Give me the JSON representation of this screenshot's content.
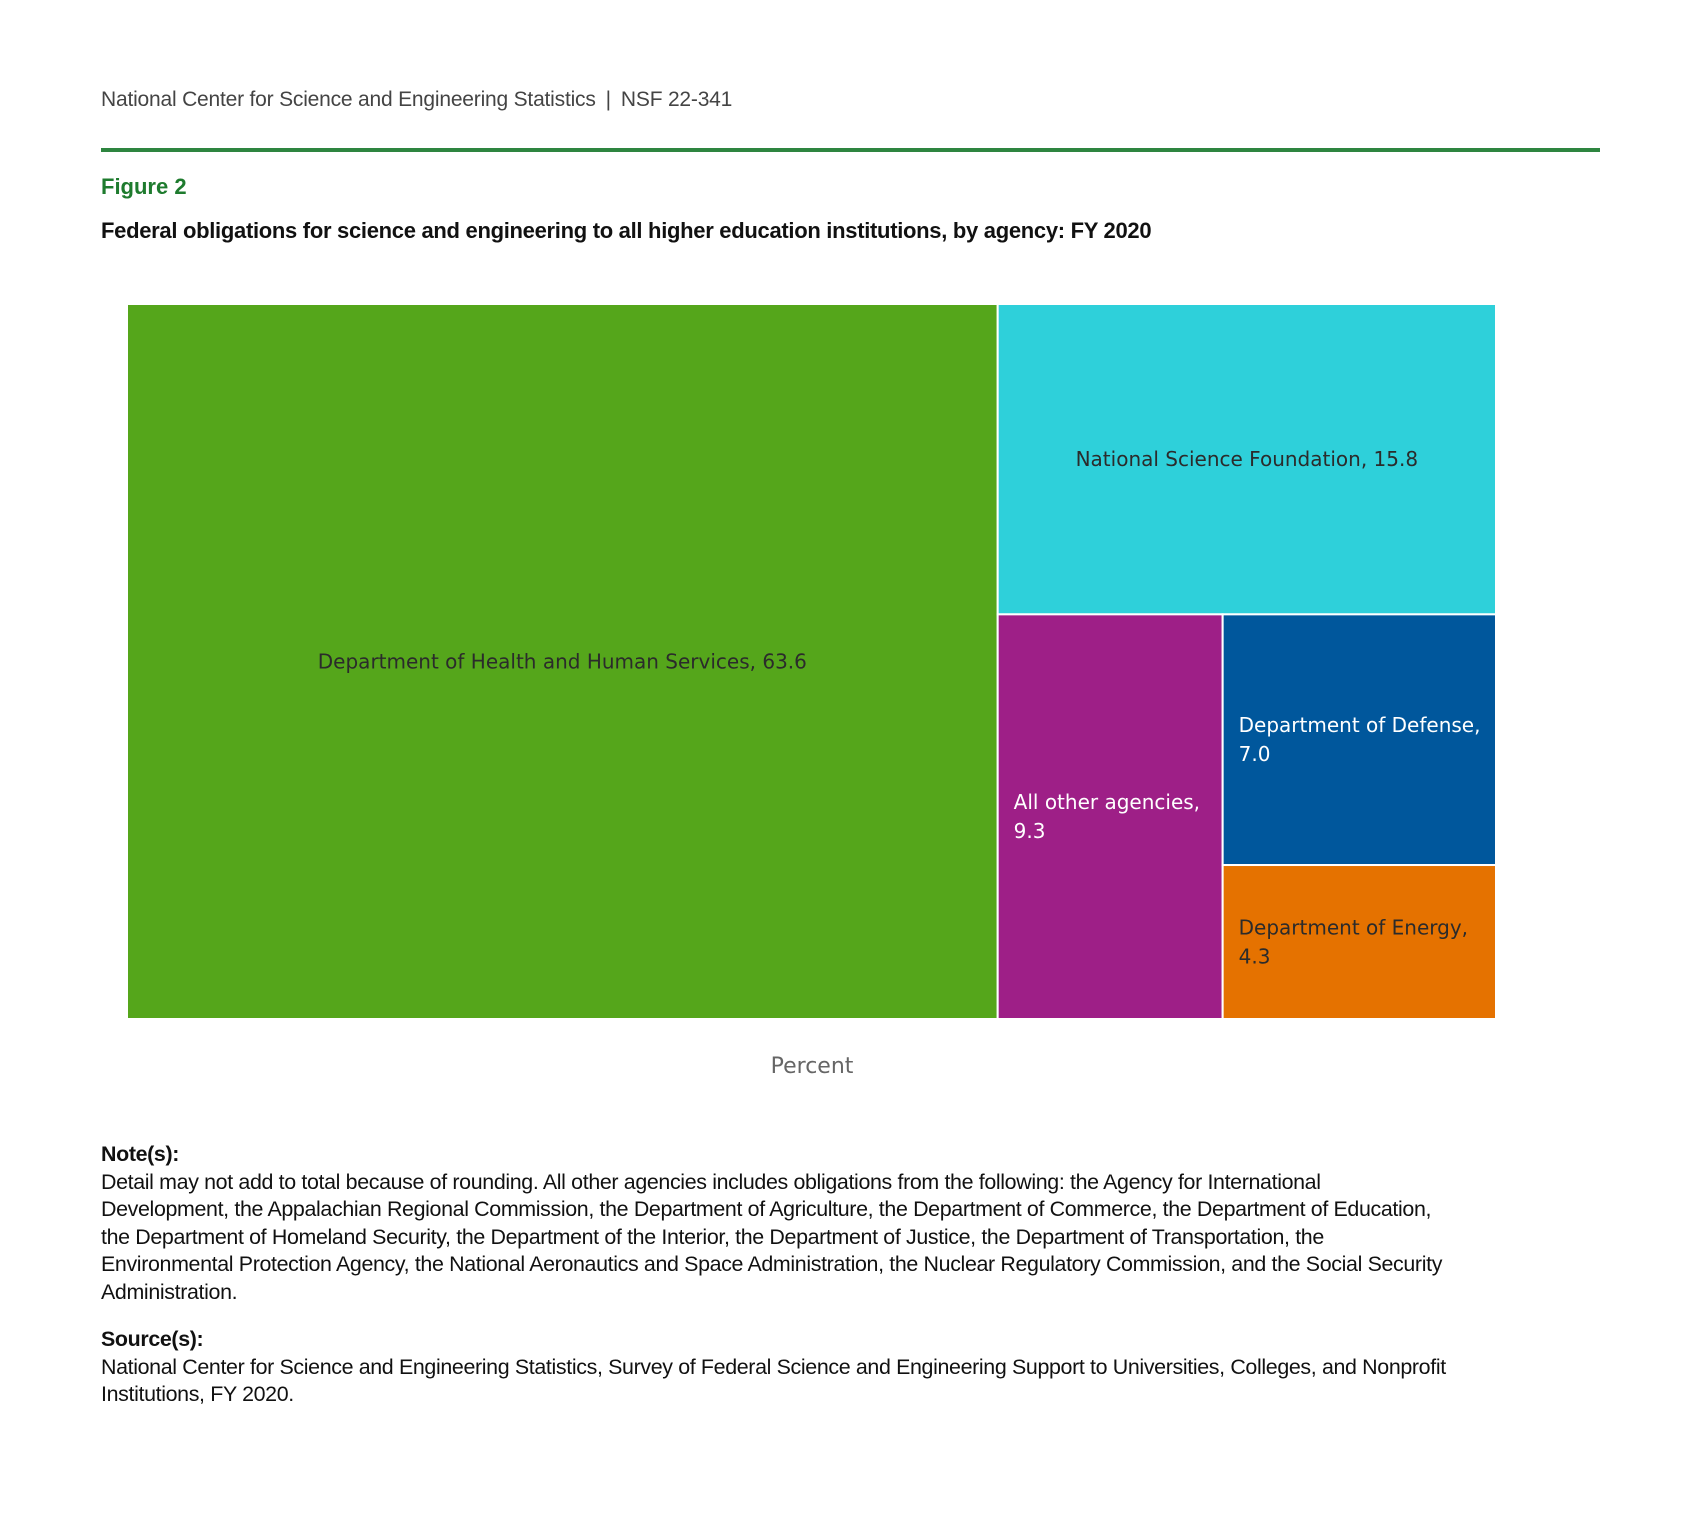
{
  "header": {
    "org": "National Center for Science and Engineering Statistics",
    "separator": "|",
    "report_id": "NSF 22-341"
  },
  "figure": {
    "label": "Figure 2",
    "title": "Federal obligations for science and engineering to all higher education institutions, by agency: FY 2020"
  },
  "colors": {
    "rule": "#2e8540",
    "figure_label": "#1e7b2e"
  },
  "chart_data": {
    "type": "treemap",
    "title": "Federal obligations for science and engineering to all higher education institutions, by agency: FY 2020",
    "xlabel": "Percent",
    "unit": "Percent",
    "items": [
      {
        "name": "Department of Health and Human Services",
        "value": 63.6,
        "label": "Department of Health and Human Services, 63.6",
        "color": "#55a61b",
        "text_color": "#2b2b2b"
      },
      {
        "name": "National Science Foundation",
        "value": 15.8,
        "label": "National Science Foundation, 15.8",
        "color": "#2ed0da",
        "text_color": "#2b2b2b"
      },
      {
        "name": "All other agencies",
        "value": 9.3,
        "label_lines": [
          "All other agencies,",
          "9.3"
        ],
        "color": "#9e1f87",
        "text_color": "#ffffff"
      },
      {
        "name": "Department of Defense",
        "value": 7.0,
        "label_lines": [
          "Department of Defense,",
          "7.0"
        ],
        "color": "#00579c",
        "text_color": "#ffffff"
      },
      {
        "name": "Department of Energy",
        "value": 4.3,
        "label_lines": [
          "Department of Energy,",
          "4.3"
        ],
        "color": "#e57200",
        "text_color": "#2b2b2b"
      }
    ]
  },
  "notes": {
    "heading": "Note(s):",
    "lines": [
      "Detail may not add to total because of rounding. All other agencies includes obligations from the following: the Agency for International",
      "Development, the Appalachian Regional Commission, the Department of Agriculture, the Department of Commerce, the Department of Education,",
      "the Department of Homeland Security, the Department of the Interior, the Department of Justice, the Department of Transportation, the",
      "Environmental Protection Agency, the National Aeronautics and Space Administration, the Nuclear Regulatory Commission, and the Social Security",
      "Administration."
    ]
  },
  "source": {
    "heading": "Source(s):",
    "lines": [
      "National Center for Science and Engineering Statistics, Survey of Federal Science and Engineering Support to Universities, Colleges, and Nonprofit",
      "Institutions, FY 2020."
    ]
  }
}
